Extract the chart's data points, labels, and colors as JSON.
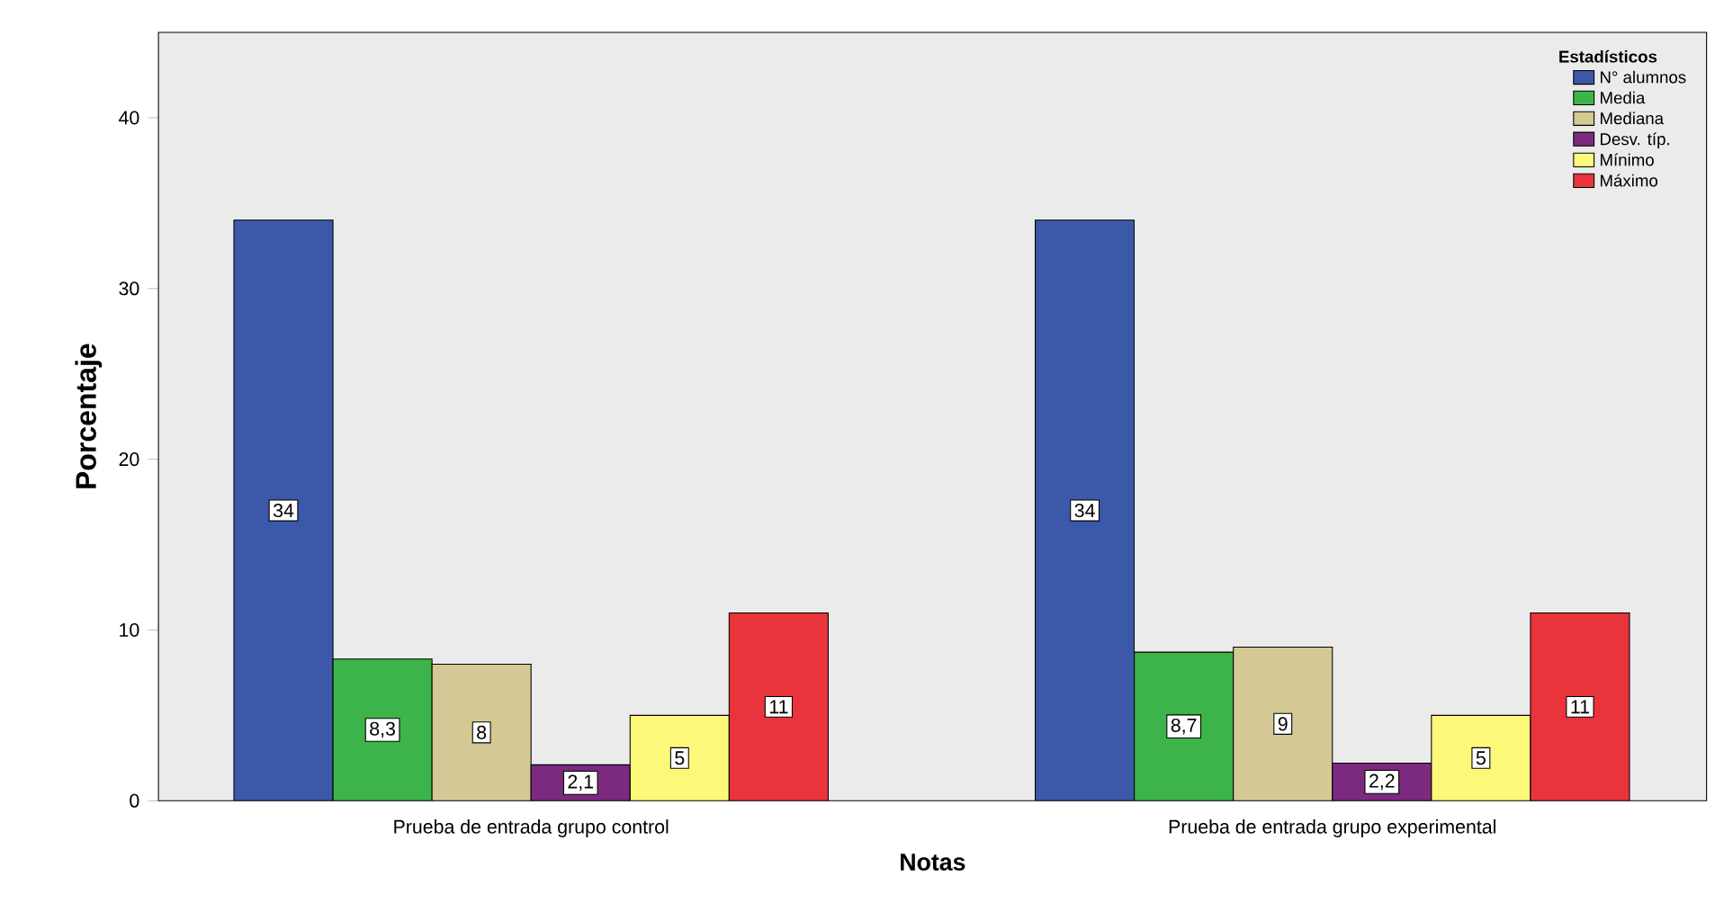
{
  "chart_data": {
    "type": "bar",
    "xlabel": "Notas",
    "ylabel": "Porcentaje",
    "legend_title": "Estadísticos",
    "legend": "top right",
    "grid": false,
    "categories": [
      "Prueba de entrada grupo control",
      "Prueba de entrada grupo experimental"
    ],
    "ylim": [
      0,
      45
    ],
    "yticks": [
      0,
      10,
      20,
      30,
      40
    ],
    "series": [
      {
        "name": "N° alumnos",
        "color": "#3c58a8",
        "values": [
          34,
          34
        ],
        "value_labels": [
          "34",
          "34"
        ]
      },
      {
        "name": "Media",
        "color": "#3cb44a",
        "values": [
          8.3,
          8.7
        ],
        "value_labels": [
          "8,3",
          "8,7"
        ]
      },
      {
        "name": "Mediana",
        "color": "#d4c994",
        "values": [
          8,
          9
        ],
        "value_labels": [
          "8",
          "9"
        ]
      },
      {
        "name": "Desv. típ.",
        "color": "#7b2a7f",
        "values": [
          2.1,
          2.2
        ],
        "value_labels": [
          "2,1",
          "2,2"
        ]
      },
      {
        "name": "Mínimo",
        "color": "#fbf87a",
        "values": [
          5,
          5
        ],
        "value_labels": [
          "5",
          "5"
        ]
      },
      {
        "name": "Máximo",
        "color": "#e8343a",
        "values": [
          11,
          11
        ],
        "value_labels": [
          "11",
          "11"
        ]
      }
    ]
  }
}
